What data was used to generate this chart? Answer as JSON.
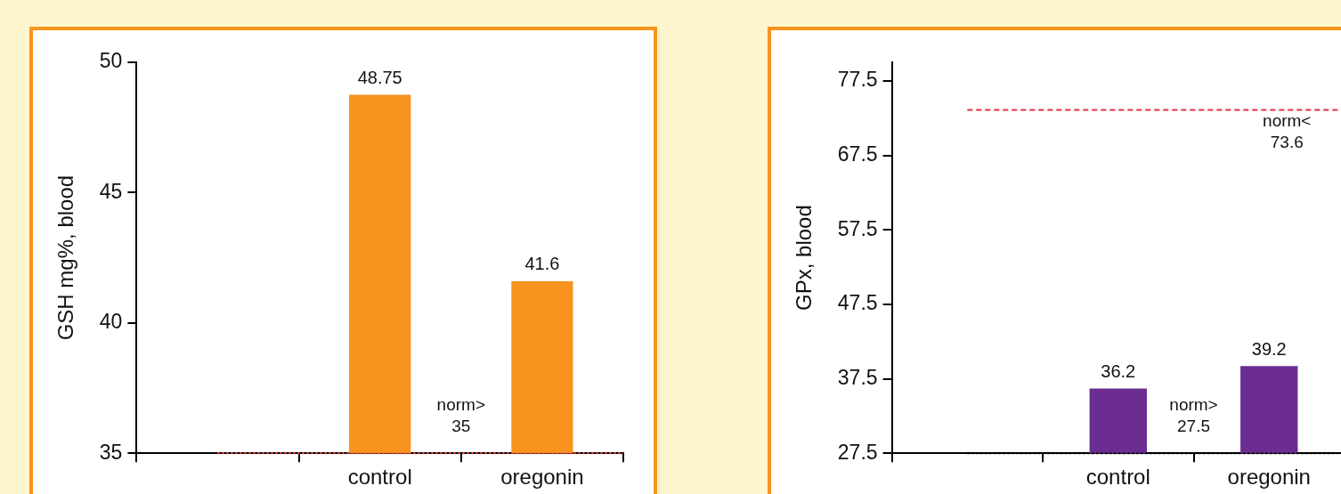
{
  "chart_data": [
    {
      "type": "bar",
      "ylabel": "GSH mg%, blood",
      "categories": [
        null,
        "control",
        "oregonin"
      ],
      "values": [
        null,
        48.75,
        41.6
      ],
      "color": "#f7931e",
      "ylim": [
        35,
        50
      ],
      "yticks": [
        35,
        40,
        45,
        50
      ],
      "grid": false,
      "legend": false,
      "data_labels": true,
      "ref_lines": [
        {
          "axis": "y",
          "value": 35,
          "label": "norm> 35",
          "color": "#ff4d4d",
          "line_style": "dotted"
        }
      ]
    },
    {
      "type": "bar",
      "ylabel": "GPx, blood",
      "categories": [
        null,
        "control",
        "oregonin"
      ],
      "values": [
        null,
        36.2,
        39.2
      ],
      "color": "#6b2d91",
      "ylim": [
        27.5,
        80
      ],
      "yticks": [
        27.5,
        37.5,
        47.5,
        57.5,
        67.5,
        77.5
      ],
      "grid": false,
      "legend": false,
      "data_labels": true,
      "ref_lines": [
        {
          "axis": "y",
          "value": 73.6,
          "label": "norm< 73.6",
          "color": "#e8313a",
          "line_style": "dashed"
        },
        {
          "axis": "y",
          "value": 27.5,
          "label": "norm> 27.5",
          "color": "#000000",
          "line_style": "dotted"
        }
      ]
    }
  ]
}
